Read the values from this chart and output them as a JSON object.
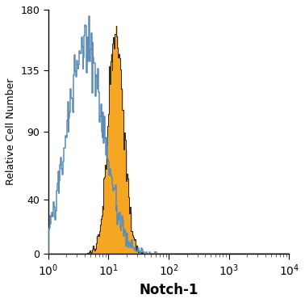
{
  "title": "",
  "xlabel": "Notch-1",
  "ylabel": "Relative Cell Number",
  "xlim_log_min": 0,
  "xlim_log_max": 4,
  "ylim": [
    0,
    180
  ],
  "yticks": [
    0,
    40,
    90,
    135,
    180
  ],
  "blue_color": "#5b8db8",
  "orange_color": "#f5a623",
  "orange_edge_color": "#2a2a2a",
  "background_color": "#ffffff",
  "blue_log_mean": 0.62,
  "blue_log_std": 0.3,
  "blue_peak_height": 175,
  "orange_log_mean": 1.12,
  "orange_log_std": 0.13,
  "orange_peak_height": 168,
  "n_bins": 350,
  "seed": 42
}
